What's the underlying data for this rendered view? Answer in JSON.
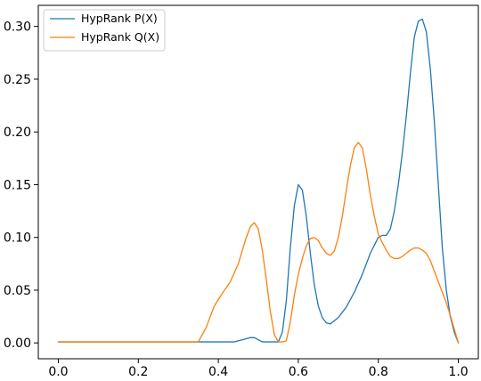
{
  "chart_data": {
    "type": "line",
    "title": "",
    "xlabel": "",
    "ylabel": "",
    "xlim": [
      -0.05,
      1.05
    ],
    "ylim": [
      -0.015,
      0.32
    ],
    "grid": false,
    "legend_position": "top-left",
    "x_ticks": [
      {
        "value": 0.0,
        "label": "0.0"
      },
      {
        "value": 0.2,
        "label": "0.2"
      },
      {
        "value": 0.4,
        "label": "0.4"
      },
      {
        "value": 0.6,
        "label": "0.6"
      },
      {
        "value": 0.8,
        "label": "0.8"
      },
      {
        "value": 1.0,
        "label": "1.0"
      }
    ],
    "y_ticks": [
      {
        "value": 0.0,
        "label": "0.00"
      },
      {
        "value": 0.05,
        "label": "0.05"
      },
      {
        "value": 0.1,
        "label": "0.10"
      },
      {
        "value": 0.15,
        "label": "0.15"
      },
      {
        "value": 0.2,
        "label": "0.20"
      },
      {
        "value": 0.25,
        "label": "0.25"
      },
      {
        "value": 0.3,
        "label": "0.30"
      }
    ],
    "series": [
      {
        "name": "HypRank P(X)",
        "color": "#1f77b4",
        "x": [
          0.0,
          0.1,
          0.2,
          0.3,
          0.35,
          0.4,
          0.44,
          0.47,
          0.48,
          0.49,
          0.5,
          0.51,
          0.53,
          0.55,
          0.56,
          0.57,
          0.58,
          0.59,
          0.6,
          0.61,
          0.62,
          0.63,
          0.64,
          0.65,
          0.66,
          0.67,
          0.68,
          0.7,
          0.72,
          0.74,
          0.76,
          0.78,
          0.8,
          0.81,
          0.82,
          0.83,
          0.84,
          0.85,
          0.86,
          0.87,
          0.88,
          0.89,
          0.9,
          0.91,
          0.92,
          0.93,
          0.94,
          0.95,
          0.96,
          0.97,
          0.98,
          0.99,
          1.0
        ],
        "y": [
          0.001,
          0.001,
          0.001,
          0.001,
          0.001,
          0.001,
          0.001,
          0.004,
          0.005,
          0.005,
          0.003,
          0.001,
          0.001,
          0.001,
          0.01,
          0.04,
          0.09,
          0.13,
          0.15,
          0.145,
          0.12,
          0.085,
          0.055,
          0.035,
          0.024,
          0.019,
          0.018,
          0.024,
          0.034,
          0.048,
          0.065,
          0.085,
          0.1,
          0.102,
          0.102,
          0.108,
          0.125,
          0.15,
          0.18,
          0.215,
          0.255,
          0.29,
          0.305,
          0.307,
          0.295,
          0.26,
          0.21,
          0.15,
          0.09,
          0.05,
          0.025,
          0.01,
          0.0
        ]
      },
      {
        "name": "HypRank Q(X)",
        "color": "#ff7f0e",
        "x": [
          0.0,
          0.1,
          0.2,
          0.3,
          0.35,
          0.37,
          0.39,
          0.41,
          0.43,
          0.45,
          0.47,
          0.48,
          0.49,
          0.5,
          0.51,
          0.52,
          0.53,
          0.54,
          0.55,
          0.56,
          0.57,
          0.58,
          0.59,
          0.6,
          0.61,
          0.62,
          0.63,
          0.64,
          0.65,
          0.66,
          0.67,
          0.68,
          0.69,
          0.7,
          0.71,
          0.72,
          0.73,
          0.74,
          0.75,
          0.76,
          0.77,
          0.78,
          0.79,
          0.8,
          0.81,
          0.82,
          0.83,
          0.84,
          0.85,
          0.86,
          0.87,
          0.88,
          0.89,
          0.9,
          0.91,
          0.92,
          0.93,
          0.94,
          0.95,
          0.96,
          0.97,
          0.98,
          0.99,
          1.0
        ],
        "y": [
          0.001,
          0.001,
          0.001,
          0.001,
          0.001,
          0.015,
          0.035,
          0.047,
          0.058,
          0.075,
          0.1,
          0.11,
          0.114,
          0.108,
          0.088,
          0.06,
          0.03,
          0.008,
          0.001,
          0.001,
          0.002,
          0.02,
          0.045,
          0.065,
          0.08,
          0.092,
          0.099,
          0.1,
          0.097,
          0.09,
          0.085,
          0.083,
          0.087,
          0.1,
          0.12,
          0.145,
          0.168,
          0.185,
          0.19,
          0.185,
          0.165,
          0.14,
          0.12,
          0.103,
          0.095,
          0.088,
          0.082,
          0.08,
          0.08,
          0.082,
          0.085,
          0.088,
          0.09,
          0.09,
          0.088,
          0.085,
          0.078,
          0.068,
          0.058,
          0.048,
          0.038,
          0.026,
          0.013,
          0.0
        ]
      }
    ]
  }
}
